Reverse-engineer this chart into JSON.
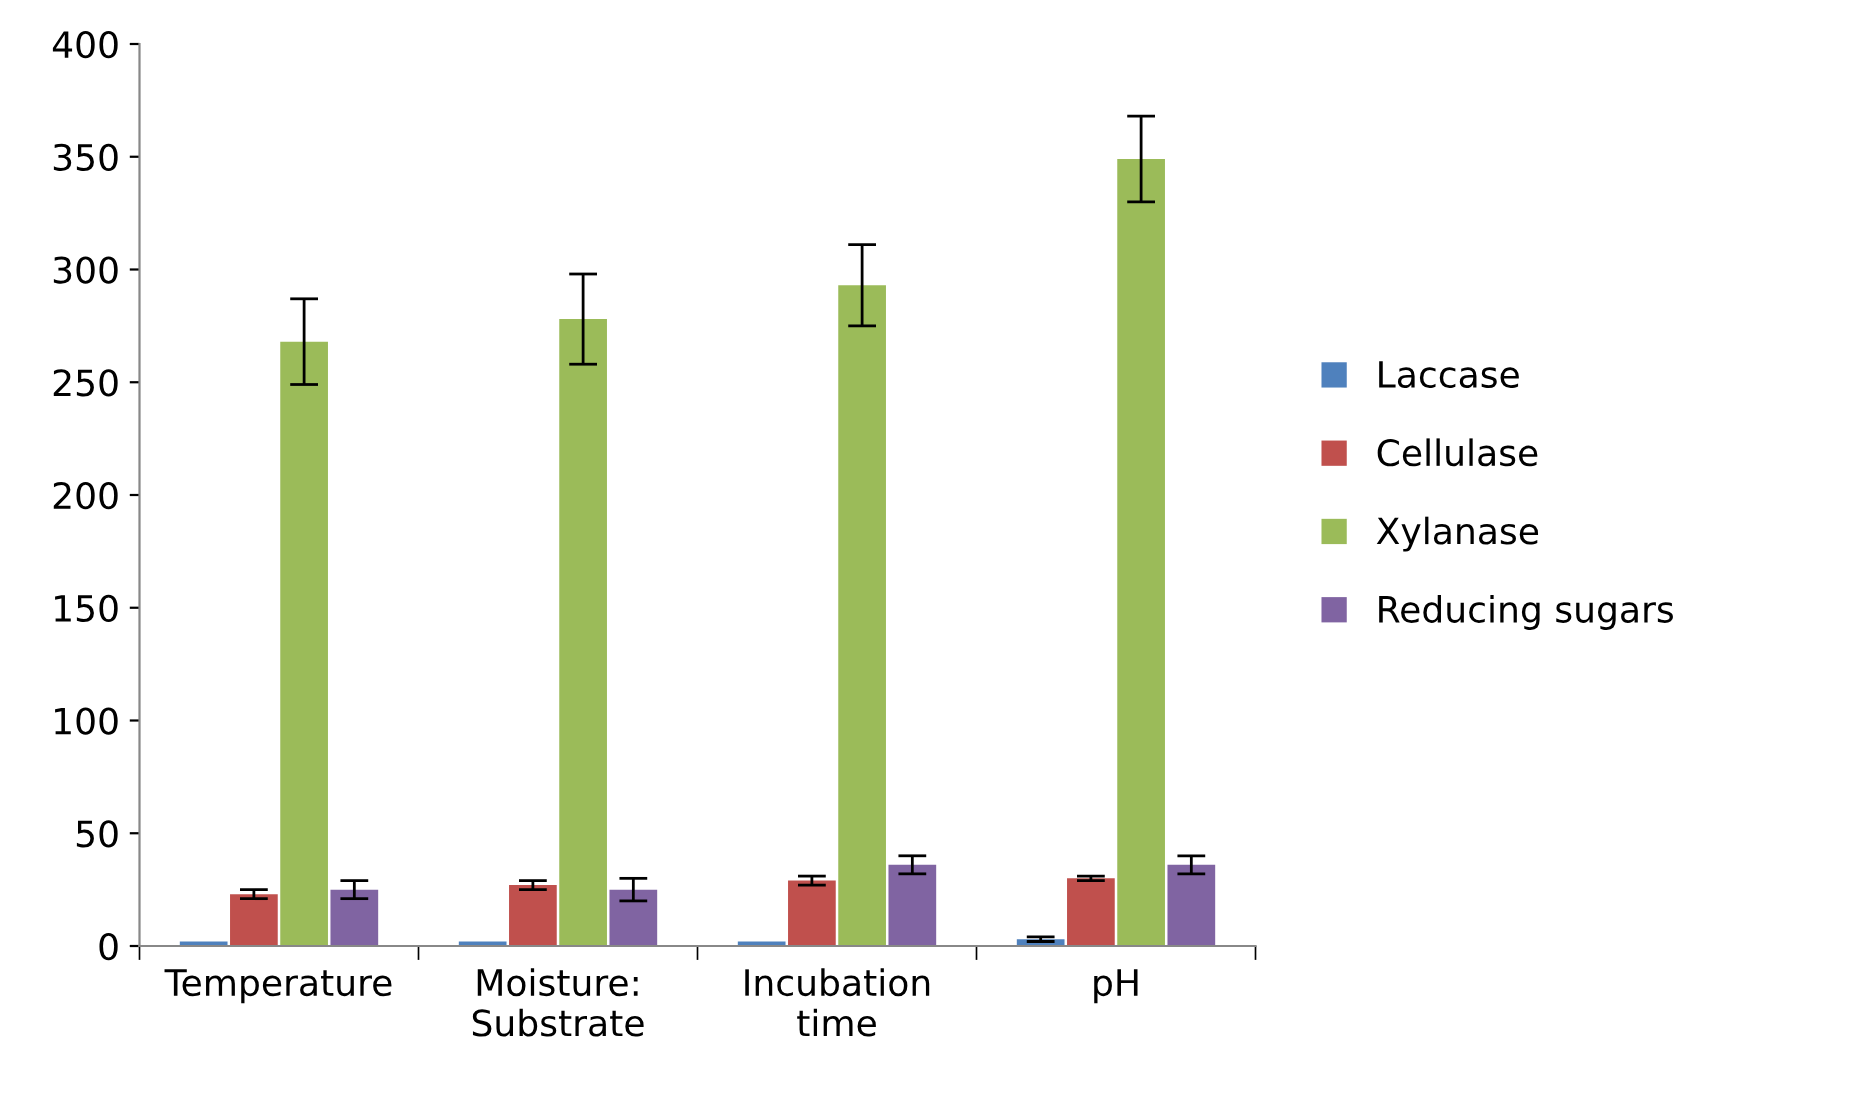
{
  "chart_data": {
    "type": "bar",
    "categories": [
      "Temperature",
      "Moisture:\nSubstrate",
      "Incubation\ntime",
      "pH"
    ],
    "series": [
      {
        "name": "Laccase",
        "color": "#4f81bd",
        "values": [
          2,
          2,
          2,
          3
        ],
        "errors": [
          null,
          null,
          null,
          1
        ]
      },
      {
        "name": "Cellulase",
        "color": "#c0504d",
        "values": [
          23,
          27,
          29,
          30
        ],
        "errors": [
          2,
          2,
          2,
          1
        ]
      },
      {
        "name": "Xylanase",
        "color": "#9bbb59",
        "values": [
          268,
          278,
          293,
          349
        ],
        "errors": [
          19,
          20,
          18,
          19
        ]
      },
      {
        "name": "Reducing sugars",
        "color": "#8064a2",
        "values": [
          25,
          25,
          36,
          36
        ],
        "errors": [
          4,
          5,
          4,
          4
        ]
      }
    ],
    "ylim": [
      0,
      400
    ],
    "yticks": [
      0,
      50,
      100,
      150,
      200,
      250,
      300,
      350,
      400
    ],
    "grid": false,
    "legend": "right"
  }
}
